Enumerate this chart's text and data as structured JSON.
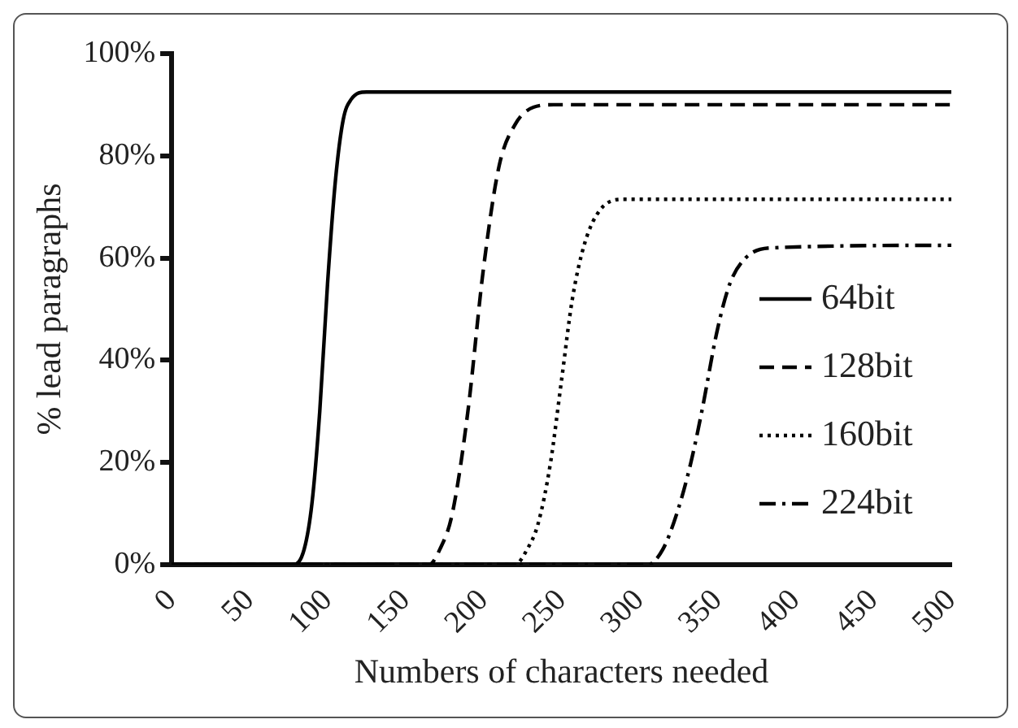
{
  "chart_data": {
    "type": "line",
    "xlabel": "Numbers of characters needed",
    "ylabel": "% lead paragraphs",
    "xlim": [
      0,
      500
    ],
    "xticks": [
      0,
      50,
      100,
      150,
      200,
      250,
      300,
      350,
      400,
      450,
      500
    ],
    "ylim": [
      0,
      100
    ],
    "yticks": [
      {
        "value": 0,
        "label": "0%"
      },
      {
        "value": 20,
        "label": "20%"
      },
      {
        "value": 40,
        "label": "40%"
      },
      {
        "value": 60,
        "label": "60%"
      },
      {
        "value": 80,
        "label": "80%"
      },
      {
        "value": 100,
        "label": "100%"
      }
    ],
    "grid": false,
    "legend": "right",
    "marker": "none",
    "series": [
      {
        "name": "64bit",
        "color": "#000000",
        "line_style": "solid",
        "x": [
          0,
          78,
          85,
          90,
          95,
          100,
          105,
          110,
          115,
          125,
          500
        ],
        "values": [
          0,
          0,
          3,
          12,
          30,
          55,
          75,
          87,
          91,
          92.5,
          92.5
        ]
      },
      {
        "name": "128bit",
        "color": "#000000",
        "line_style": "dashed",
        "x": [
          0,
          165,
          172,
          180,
          190,
          200,
          210,
          220,
          232,
          245,
          500
        ],
        "values": [
          0,
          0,
          3,
          10,
          30,
          58,
          78,
          86,
          89.5,
          90,
          90
        ]
      },
      {
        "name": "160bit",
        "color": "#000000",
        "line_style": "dotted",
        "x": [
          0,
          220,
          228,
          235,
          243,
          250,
          257,
          265,
          275,
          290,
          500
        ],
        "values": [
          0,
          0,
          3,
          8,
          20,
          36,
          52,
          63,
          69.5,
          71.5,
          71.5
        ]
      },
      {
        "name": "224bit",
        "color": "#000000",
        "line_style": "dashdot",
        "x": [
          0,
          305,
          315,
          325,
          333,
          340,
          350,
          358,
          368,
          385,
          500
        ],
        "values": [
          0,
          0,
          3,
          11,
          20,
          30,
          46,
          55,
          60,
          62,
          62.5
        ]
      }
    ]
  }
}
